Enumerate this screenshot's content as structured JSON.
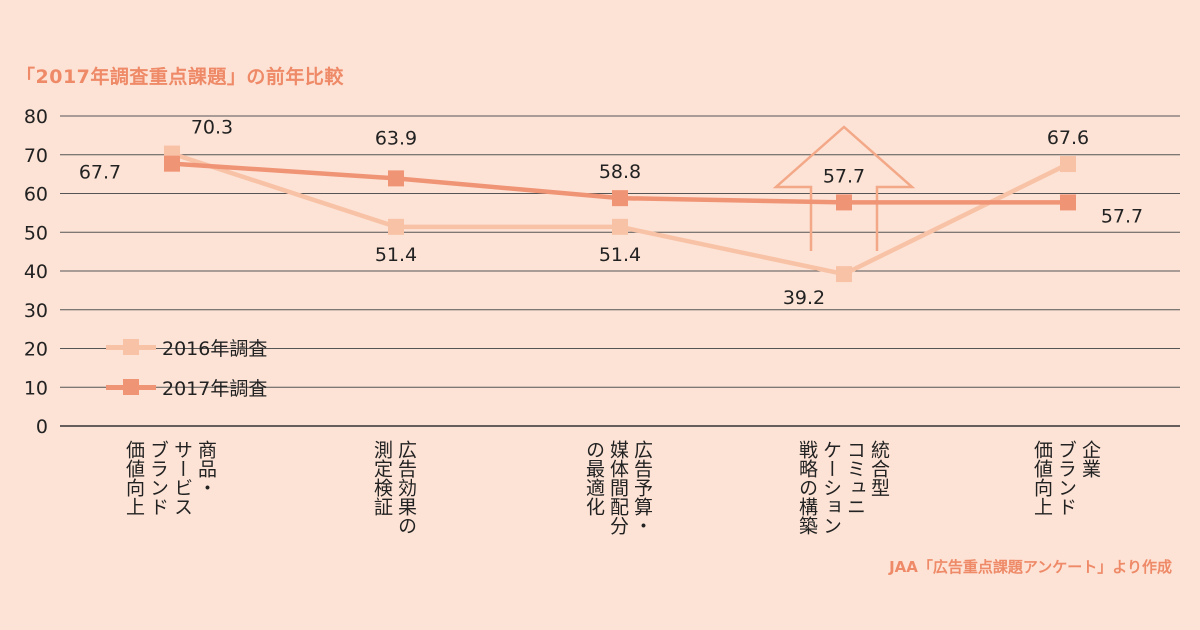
{
  "title": "「2017年調査重点課題」の前年比較",
  "source": "JAA「広告重点課題アンケート」より作成",
  "colors": {
    "series_2016": "#f8c2a6",
    "series_2017": "#f09476",
    "accent": "#ee8a68",
    "background": "#fde3d6"
  },
  "legend": [
    {
      "label": "2016年調査"
    },
    {
      "label": "2017年調査"
    }
  ],
  "chart_data": {
    "type": "line",
    "categories": [
      "商品・\nサービス\nブランド\n価値向上",
      "広告効果の\n測定検証",
      "広告予算・\n媒体間配分\nの最適化",
      "統合型\nコミュニ\nケーション\n戦略の構築",
      "企業\nブランド\n価値向上"
    ],
    "series": [
      {
        "name": "2016年調査",
        "values": [
          70.3,
          51.4,
          51.4,
          39.2,
          67.6
        ]
      },
      {
        "name": "2017年調査",
        "values": [
          67.7,
          63.9,
          58.8,
          57.7,
          57.7
        ]
      }
    ],
    "ylim": [
      0,
      80
    ],
    "yticks": [
      0,
      10,
      20,
      30,
      40,
      50,
      60,
      70,
      80
    ],
    "grid": true,
    "legend_position": "bottom-left",
    "annotation": "upward-arrow-over-category-4"
  }
}
